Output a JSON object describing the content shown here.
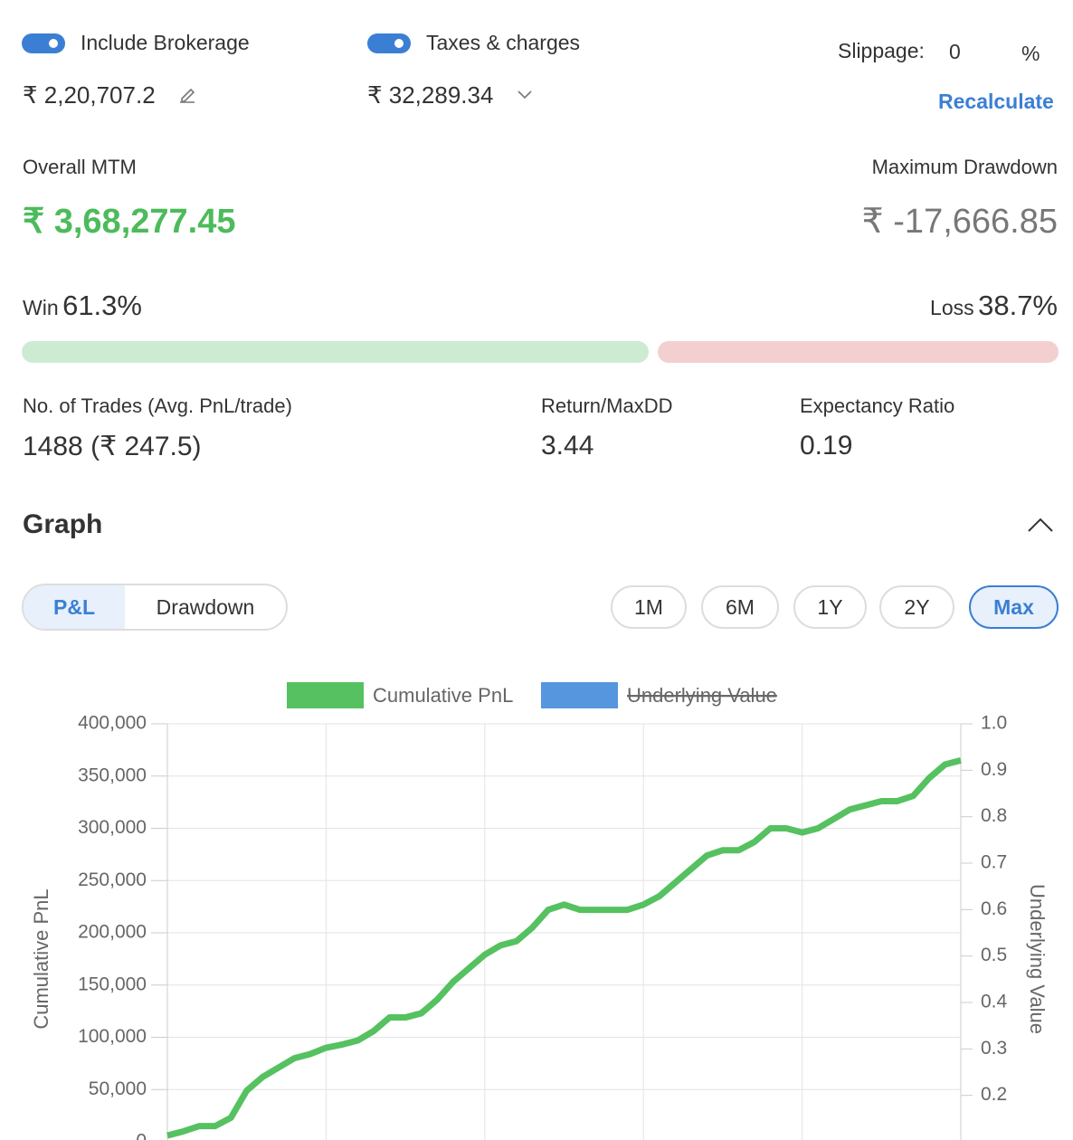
{
  "settings": {
    "brokerage": {
      "label": "Include Brokerage",
      "amount": "₹ 2,20,707.2"
    },
    "taxes": {
      "label": "Taxes & charges",
      "amount": "₹ 32,289.34"
    },
    "slippage": {
      "label": "Slippage:",
      "value": "0",
      "unit": "%"
    },
    "recalculate": "Recalculate"
  },
  "summary": {
    "overall_mtm": {
      "label": "Overall MTM",
      "value": "₹ 3,68,277.45"
    },
    "max_drawdown": {
      "label": "Maximum Drawdown",
      "value": "₹ -17,666.85"
    },
    "win": {
      "label": "Win",
      "value": "61.3%"
    },
    "loss": {
      "label": "Loss",
      "value": "38.7%"
    },
    "trades": {
      "label": "No. of Trades (Avg. PnL/trade)",
      "value": "1488 (₹ 247.5)"
    },
    "return_maxdd": {
      "label": "Return/MaxDD",
      "value": "3.44"
    },
    "expectancy": {
      "label": "Expectancy Ratio",
      "value": "0.19"
    }
  },
  "graph": {
    "title": "Graph",
    "tabs": [
      "P&L",
      "Drawdown"
    ],
    "ranges": [
      "1M",
      "6M",
      "1Y",
      "2Y",
      "Max"
    ]
  },
  "chart_data": {
    "type": "line",
    "y_label": "Cumulative PnL",
    "y2_label": "Underlying Value",
    "categories": [
      null,
      null,
      null,
      null,
      null,
      null,
      null,
      null,
      null,
      null,
      null,
      null,
      null,
      null,
      null,
      null,
      null,
      null,
      null,
      null,
      null,
      null,
      null,
      null,
      null,
      null,
      null,
      null,
      null,
      null,
      null,
      null,
      null,
      null,
      null,
      null,
      null,
      null,
      null,
      null,
      null,
      null,
      null,
      null,
      null,
      null,
      null,
      null,
      null,
      null,
      null
    ],
    "series": [
      {
        "name": "Cumulative PnL",
        "color": "#55c160",
        "values": [
          6000,
          10000,
          15000,
          15000,
          23000,
          49000,
          62000,
          71000,
          80000,
          84000,
          90000,
          93000,
          97000,
          106000,
          119000,
          119000,
          123000,
          136000,
          153000,
          166000,
          179000,
          188000,
          192000,
          205000,
          222000,
          227000,
          222000,
          222000,
          222000,
          222000,
          227000,
          235000,
          248000,
          261000,
          274000,
          279000,
          279000,
          287000,
          300000,
          300000,
          296000,
          300000,
          309000,
          318000,
          322000,
          326000,
          326000,
          331000,
          348000,
          361000,
          365000
        ]
      },
      {
        "name": "Underlying Value",
        "color": "#5596de",
        "axis": "y2",
        "hidden": true
      }
    ],
    "ylim": [
      0,
      400000
    ],
    "yticks": [
      0,
      {
        "value": 50000,
        "label": "50,000"
      },
      {
        "value": 100000,
        "label": "100,000"
      },
      {
        "value": 150000,
        "label": "150,000"
      },
      {
        "value": 200000,
        "label": "200,000"
      },
      {
        "value": 250000,
        "label": "250,000"
      },
      {
        "value": 300000,
        "label": "300,000"
      },
      {
        "value": 350000,
        "label": "350,000"
      },
      {
        "value": 400000,
        "label": "400,000"
      }
    ],
    "y2lim": [
      0.1,
      1.0
    ],
    "y2ticks": [
      0.2,
      0.3,
      0.4,
      0.5,
      0.6,
      0.7,
      0.8,
      0.9,
      {
        "value": 1,
        "label": "1.0"
      }
    ],
    "grid": true
  }
}
